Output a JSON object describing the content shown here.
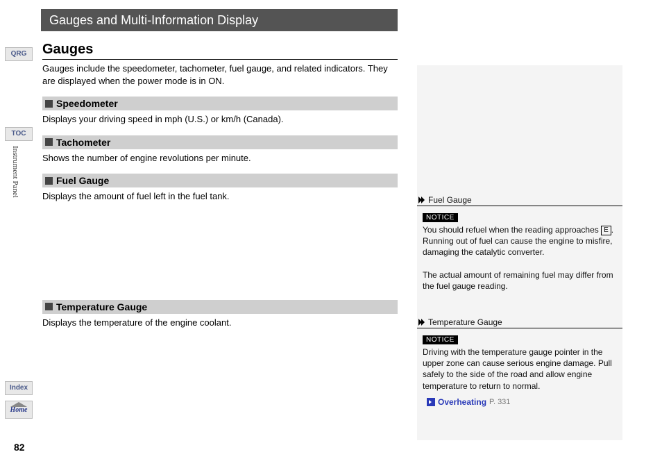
{
  "nav": {
    "qrg": "QRG",
    "toc": "TOC",
    "index": "Index",
    "home": "Home",
    "vertical_label": "Instrument Panel"
  },
  "page_number": "82",
  "header": "Gauges and Multi-Information Display",
  "main": {
    "title": "Gauges",
    "intro": "Gauges include the speedometer, tachometer, fuel gauge, and related indicators. They are displayed when the power mode is in ON.",
    "sections": [
      {
        "heading": "Speedometer",
        "text": "Displays your driving speed in mph (U.S.) or km/h (Canada)."
      },
      {
        "heading": "Tachometer",
        "text": "Shows the number of engine revolutions per minute."
      },
      {
        "heading": "Fuel Gauge",
        "text": "Displays the amount of fuel left in the fuel tank."
      },
      {
        "heading": "Temperature Gauge",
        "text": "Displays the temperature of the engine coolant."
      }
    ]
  },
  "sidebar": {
    "notice_label": "NOTICE",
    "fuel": {
      "heading": "Fuel Gauge",
      "p1a": "You should refuel when the reading approaches ",
      "e": "E",
      "p1b": ". Running out of fuel can cause the engine to misfire, damaging the catalytic converter.",
      "p2": "The actual amount of remaining fuel may differ from the fuel gauge reading."
    },
    "temp": {
      "heading": "Temperature Gauge",
      "p1": "Driving with the temperature gauge pointer in the upper zone can cause serious engine damage. Pull safely to the side of the road and allow engine temperature to return to normal.",
      "link_text": "Overheating",
      "link_page": "P. 331"
    }
  }
}
